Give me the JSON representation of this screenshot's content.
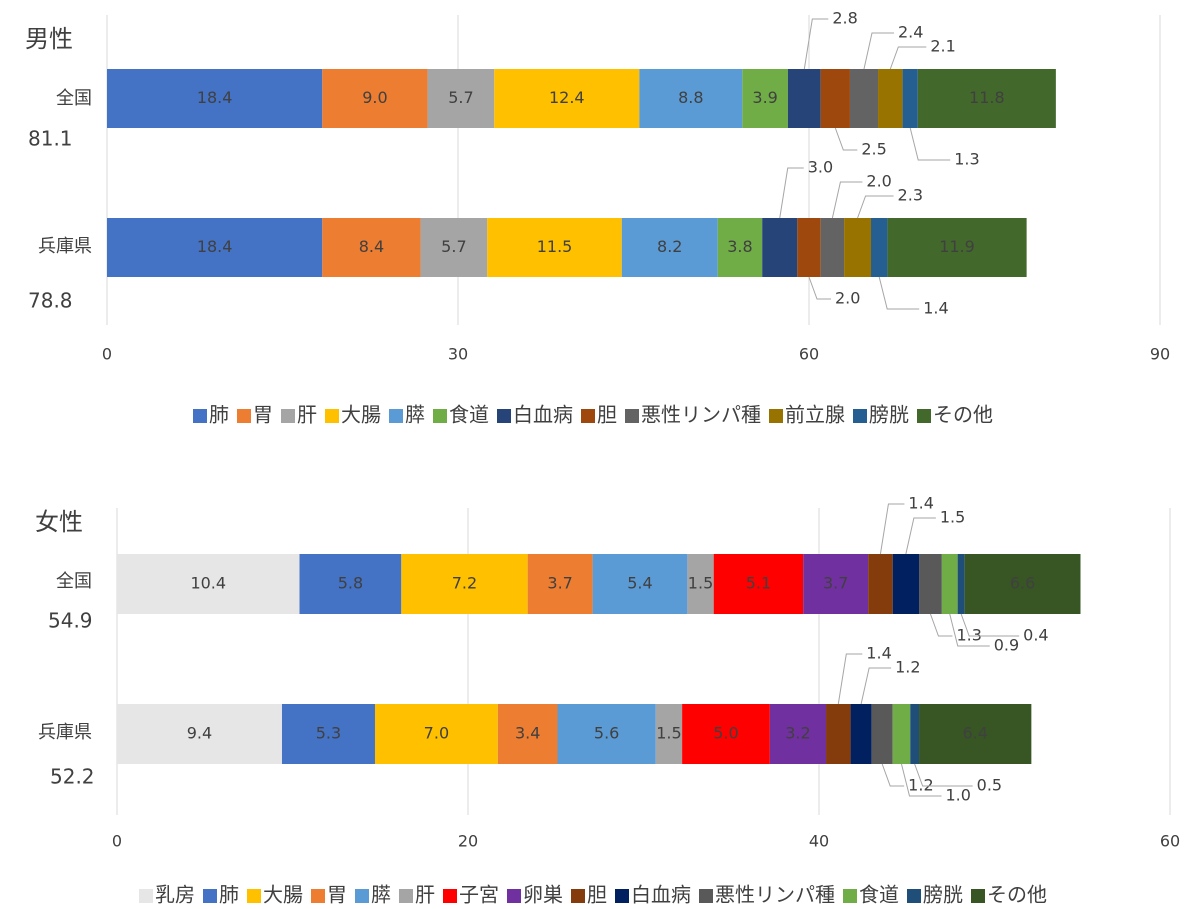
{
  "chart_data": [
    {
      "type": "bar",
      "orientation": "horizontal",
      "stacked": true,
      "title": "男性",
      "categories": [
        "全国",
        "兵庫県"
      ],
      "totals": [
        81.1,
        78.8
      ],
      "xlim": [
        0,
        90
      ],
      "xticks": [
        0,
        30,
        60,
        90
      ],
      "grid": true,
      "legend": "bottom",
      "series": [
        {
          "name": "肺",
          "color": "#4472c4",
          "values": [
            18.4,
            18.4
          ],
          "value_labels": [
            "18.4",
            "18.4"
          ]
        },
        {
          "name": "胃",
          "color": "#ed7d31",
          "values": [
            9.0,
            8.4
          ],
          "value_labels": [
            "9.0",
            "8.4"
          ]
        },
        {
          "name": "肝",
          "color": "#a5a5a5",
          "values": [
            5.7,
            5.7
          ],
          "value_labels": [
            "5.7",
            "5.7"
          ]
        },
        {
          "name": "大腸",
          "color": "#ffc000",
          "values": [
            12.4,
            11.5
          ],
          "value_labels": [
            "12.4",
            "11.5"
          ]
        },
        {
          "name": "膵",
          "color": "#5b9bd5",
          "values": [
            8.8,
            8.2
          ],
          "value_labels": [
            "8.8",
            "8.2"
          ]
        },
        {
          "name": "食道",
          "color": "#70ad47",
          "values": [
            3.9,
            3.8
          ],
          "value_labels": [
            "3.9",
            "3.8"
          ]
        },
        {
          "name": "白血病",
          "color": "#264478",
          "values": [
            2.8,
            3.0
          ],
          "value_labels": [
            "2.8",
            "3.0"
          ]
        },
        {
          "name": "胆",
          "color": "#9e480e",
          "values": [
            2.5,
            2.0
          ],
          "value_labels": [
            "2.5",
            "2.0"
          ]
        },
        {
          "name": "悪性リンパ種",
          "color": "#636363",
          "values": [
            2.4,
            2.0
          ],
          "value_labels": [
            "2.4",
            "2.0"
          ]
        },
        {
          "name": "前立腺",
          "color": "#997300",
          "values": [
            2.1,
            2.3
          ],
          "value_labels": [
            "2.1",
            "2.3"
          ]
        },
        {
          "name": "膀胱",
          "color": "#255e91",
          "values": [
            1.3,
            1.4
          ],
          "value_labels": [
            "1.3",
            "1.4"
          ]
        },
        {
          "name": "その他",
          "color": "#43682b",
          "values": [
            11.8,
            11.9
          ],
          "value_labels": [
            "11.8",
            "11.9"
          ]
        }
      ]
    },
    {
      "type": "bar",
      "orientation": "horizontal",
      "stacked": true,
      "title": "女性",
      "categories": [
        "全国",
        "兵庫県"
      ],
      "totals": [
        54.9,
        52.2
      ],
      "xlim": [
        0,
        60
      ],
      "xticks": [
        0,
        20,
        40,
        60
      ],
      "grid": true,
      "legend": "bottom",
      "series": [
        {
          "name": "乳房",
          "color": "#e7e6e6",
          "values": [
            10.4,
            9.4
          ],
          "value_labels": [
            "10.4",
            "9.4"
          ]
        },
        {
          "name": "肺",
          "color": "#4472c4",
          "values": [
            5.8,
            5.3
          ],
          "value_labels": [
            "5.8",
            "5.3"
          ]
        },
        {
          "name": "大腸",
          "color": "#ffc000",
          "values": [
            7.2,
            7.0
          ],
          "value_labels": [
            "7.2",
            "7.0"
          ]
        },
        {
          "name": "胃",
          "color": "#ed7d31",
          "values": [
            3.7,
            3.4
          ],
          "value_labels": [
            "3.7",
            "3.4"
          ]
        },
        {
          "name": "膵",
          "color": "#5b9bd5",
          "values": [
            5.4,
            5.6
          ],
          "value_labels": [
            "5.4",
            "5.6"
          ]
        },
        {
          "name": "肝",
          "color": "#a5a5a5",
          "values": [
            1.5,
            1.5
          ],
          "value_labels": [
            "1.5",
            "1.5"
          ]
        },
        {
          "name": "子宮",
          "color": "#ff0000",
          "values": [
            5.1,
            5.0
          ],
          "value_labels": [
            "5.1",
            "5.0"
          ]
        },
        {
          "name": "卵巣",
          "color": "#7030a0",
          "values": [
            3.7,
            3.2
          ],
          "value_labels": [
            "3.7",
            "3.2"
          ]
        },
        {
          "name": "胆",
          "color": "#843c0c",
          "values": [
            1.4,
            1.4
          ],
          "value_labels": [
            "1.4",
            "1.4"
          ]
        },
        {
          "name": "白血病",
          "color": "#002060",
          "values": [
            1.5,
            1.2
          ],
          "value_labels": [
            "1.5",
            "1.2"
          ]
        },
        {
          "name": "悪性リンパ種",
          "color": "#595959",
          "values": [
            1.3,
            1.2
          ],
          "value_labels": [
            "1.3",
            "1.2"
          ]
        },
        {
          "name": "食道",
          "color": "#70ad47",
          "values": [
            0.9,
            1.0
          ],
          "value_labels": [
            "0.9",
            "1.0"
          ]
        },
        {
          "name": "膀胱",
          "color": "#1f4e79",
          "values": [
            0.4,
            0.5
          ],
          "value_labels": [
            "0.4",
            "0.5"
          ]
        },
        {
          "name": "その他",
          "color": "#375623",
          "values": [
            6.6,
            6.4
          ],
          "value_labels": [
            "6.6",
            "6.4"
          ]
        }
      ]
    }
  ]
}
